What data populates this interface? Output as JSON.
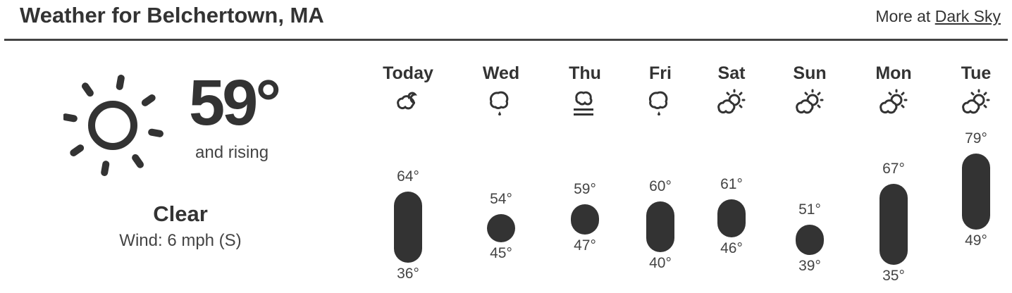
{
  "header": {
    "title": "Weather for Belchertown, MA",
    "more_prefix": "More at ",
    "more_link": "Dark Sky"
  },
  "current": {
    "icon": "clear-day-icon",
    "temperature": "59°",
    "trend": "and rising",
    "summary": "Clear",
    "wind": "Wind: 6 mph (S)"
  },
  "forecast": [
    {
      "day": "Today",
      "icon": "partly-cloudy-night-icon",
      "high": 64,
      "low": 36
    },
    {
      "day": "Wed",
      "icon": "rain-icon",
      "high": 54,
      "low": 45
    },
    {
      "day": "Thu",
      "icon": "fog-icon",
      "high": 59,
      "low": 47
    },
    {
      "day": "Fri",
      "icon": "rain-icon",
      "high": 60,
      "low": 40
    },
    {
      "day": "Sat",
      "icon": "partly-cloudy-day-icon",
      "high": 61,
      "low": 46
    },
    {
      "day": "Sun",
      "icon": "partly-cloudy-day-icon",
      "high": 51,
      "low": 39
    },
    {
      "day": "Mon",
      "icon": "partly-cloudy-day-icon",
      "high": 67,
      "low": 35
    },
    {
      "day": "Tue",
      "icon": "partly-cloudy-day-icon",
      "high": 79,
      "low": 49
    }
  ],
  "colors": {
    "text": "#333333",
    "bar": "#333333"
  }
}
